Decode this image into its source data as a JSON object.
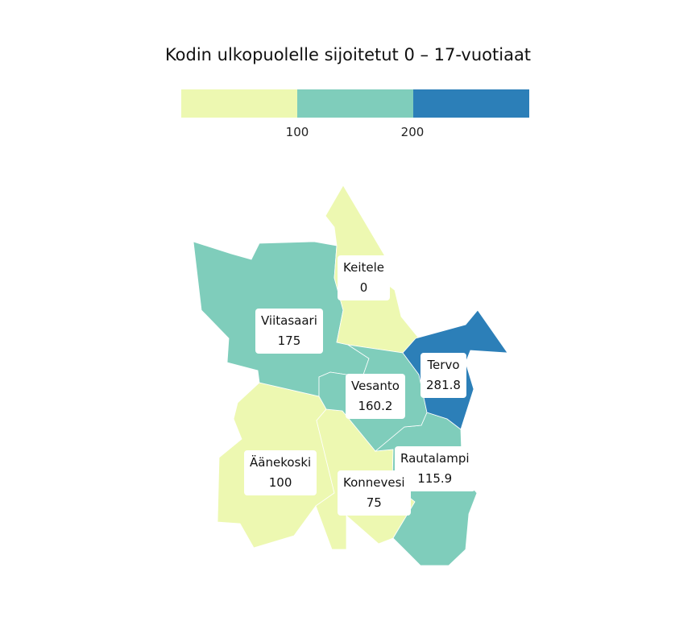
{
  "title": "Kodin ulkopuolelle sijoitetut 0 – 17-vuotiaat",
  "legend": {
    "colors": [
      "#edf8b1",
      "#7fcdbb",
      "#2c7fb8"
    ],
    "ticks": [
      "100",
      "200"
    ]
  },
  "regions": [
    {
      "name": "Keitele",
      "value": "0",
      "color": "#edf8b1"
    },
    {
      "name": "Viitasaari",
      "value": "175",
      "color": "#7fcdbb"
    },
    {
      "name": "Tervo",
      "value": "281.8",
      "color": "#2c7fb8"
    },
    {
      "name": "Vesanto",
      "value": "160.2",
      "color": "#7fcdbb"
    },
    {
      "name": "Äänekoski",
      "value": "100",
      "color": "#edf8b1"
    },
    {
      "name": "Rautalampi",
      "value": "115.9",
      "color": "#7fcdbb"
    },
    {
      "name": "Konnevesi",
      "value": "75",
      "color": "#edf8b1"
    }
  ]
}
